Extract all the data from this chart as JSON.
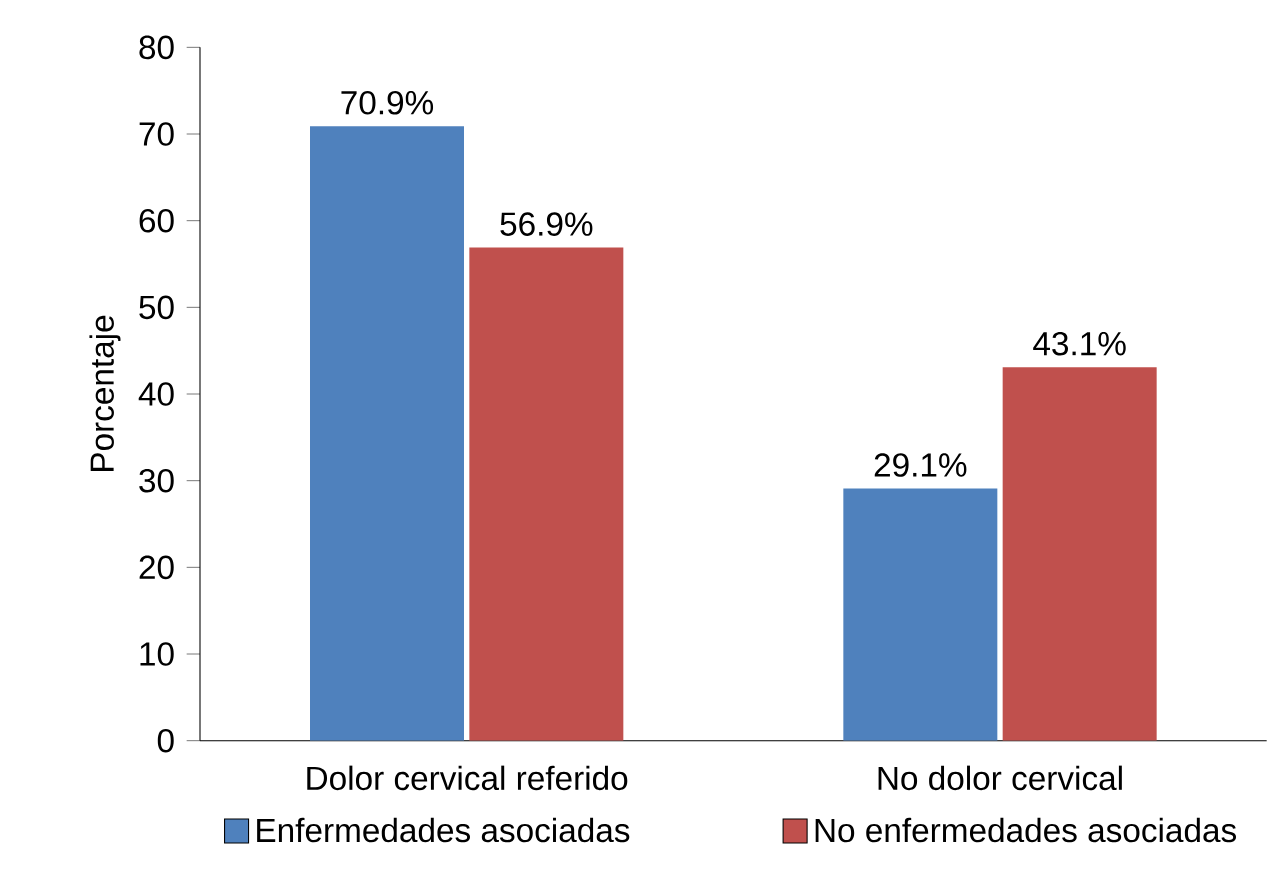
{
  "chart_data": {
    "type": "bar",
    "ylabel": "Porcentaje",
    "categories": [
      "Dolor cervical referido",
      "No dolor cervical"
    ],
    "series": [
      {
        "name": "Enfermedades asociadas",
        "color": "#4f81bd",
        "values": [
          70.9,
          29.1
        ],
        "value_labels": [
          "70.9%",
          "29.1%"
        ]
      },
      {
        "name": "No enfermedades asociadas",
        "color": "#c0504d",
        "values": [
          56.9,
          43.1
        ],
        "value_labels": [
          "56.9%",
          "43.1%"
        ]
      }
    ],
    "ylim": [
      0,
      80
    ],
    "yticks": [
      0,
      10,
      20,
      30,
      40,
      50,
      60,
      70,
      80
    ],
    "grid": false,
    "legend": "bottom"
  }
}
